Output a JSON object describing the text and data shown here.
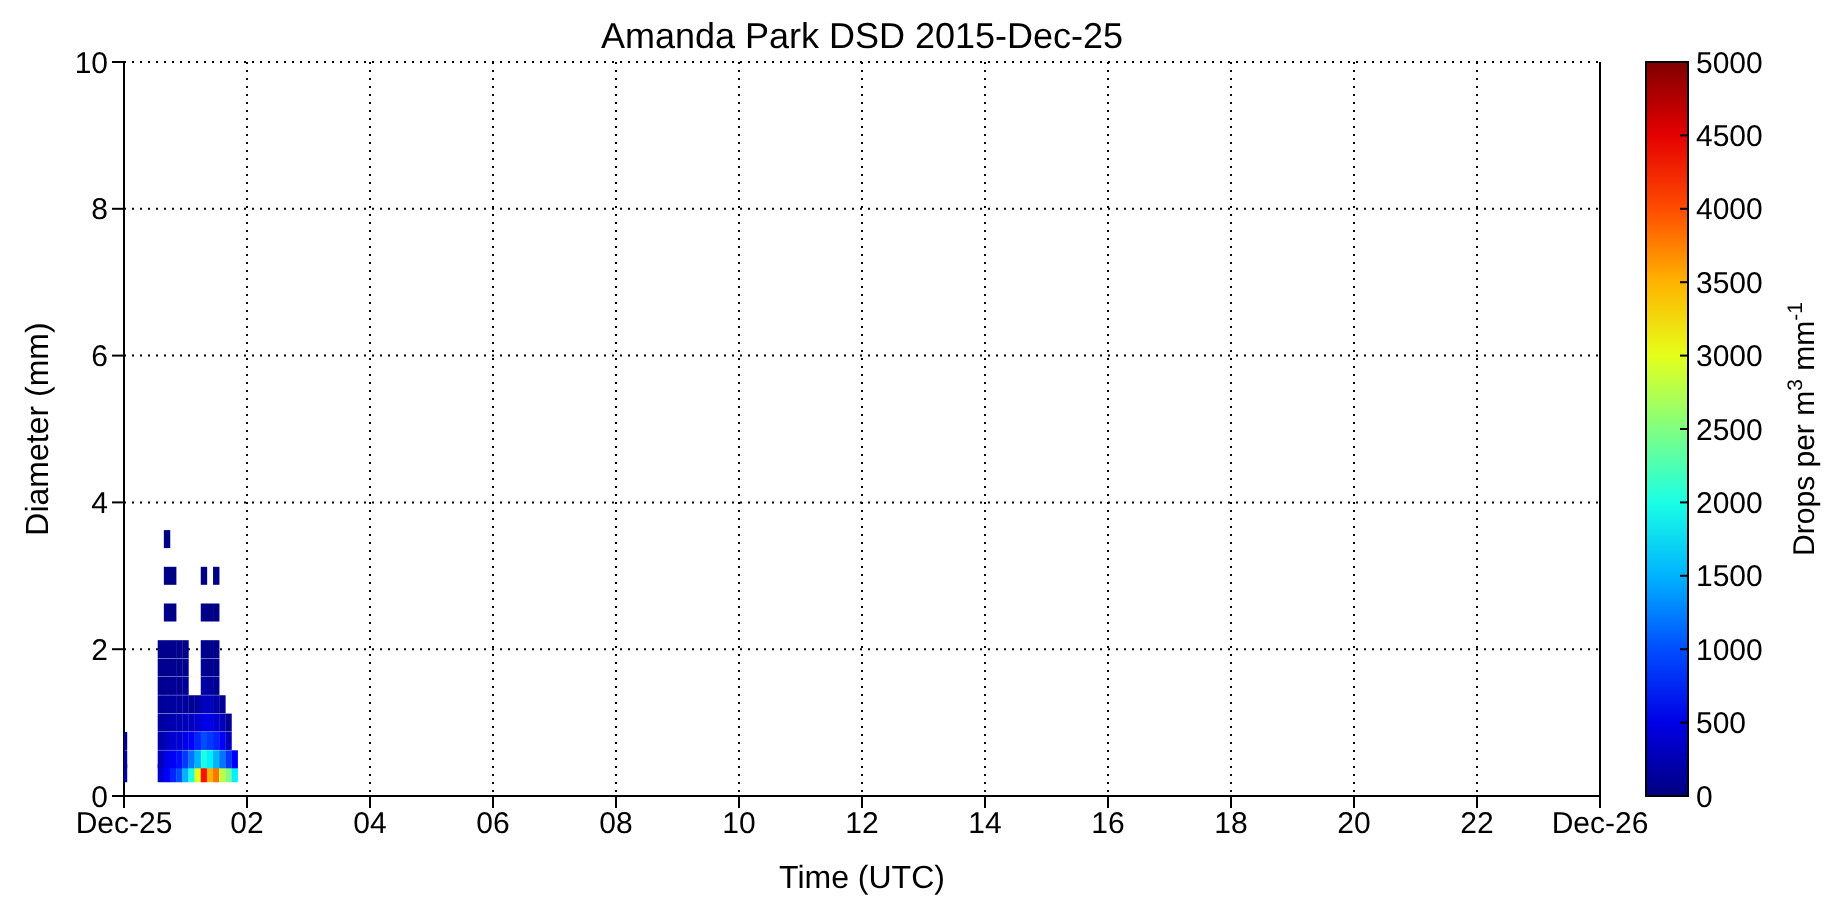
{
  "chart_data": {
    "type": "scatter",
    "title": "Amanda Park DSD 2015-Dec-25",
    "xlabel": "Time (UTC)",
    "ylabel": "Diameter (mm)",
    "clabel": "Drops per m$^{3}$ mm$^{-1}$",
    "x": [
      0.0,
      0.0,
      0.0,
      0.6,
      0.6,
      0.6,
      0.6,
      0.6,
      0.6,
      0.6,
      0.6,
      0.7,
      0.7,
      0.7,
      0.7,
      0.7,
      0.7,
      0.7,
      0.7,
      0.7,
      0.7,
      0.7,
      0.8,
      0.8,
      0.8,
      0.8,
      0.8,
      0.8,
      0.8,
      0.8,
      0.8,
      0.8,
      0.9,
      0.9,
      0.9,
      0.9,
      0.9,
      0.9,
      0.9,
      0.9,
      1.0,
      1.0,
      1.0,
      1.0,
      1.0,
      1.0,
      1.0,
      1.0,
      1.1,
      1.1,
      1.1,
      1.1,
      1.1,
      1.2,
      1.2,
      1.2,
      1.2,
      1.2,
      1.3,
      1.3,
      1.3,
      1.3,
      1.3,
      1.3,
      1.3,
      1.3,
      1.3,
      1.3,
      1.4,
      1.4,
      1.4,
      1.4,
      1.4,
      1.4,
      1.4,
      1.4,
      1.4,
      1.5,
      1.5,
      1.5,
      1.5,
      1.5,
      1.5,
      1.5,
      1.5,
      1.5,
      1.5,
      1.6,
      1.6,
      1.6,
      1.6,
      1.6,
      1.7,
      1.7,
      1.7,
      1.7,
      1.8,
      1.8
    ],
    "values": [
      0.31,
      0.5,
      0.75,
      0.31,
      0.5,
      0.75,
      1.0,
      1.25,
      1.5,
      1.75,
      2.0,
      0.31,
      0.5,
      0.75,
      1.0,
      1.25,
      1.5,
      1.75,
      2.0,
      2.5,
      3.0,
      3.5,
      0.31,
      0.5,
      0.75,
      1.0,
      1.25,
      1.5,
      1.75,
      2.0,
      2.5,
      3.0,
      0.31,
      0.5,
      0.75,
      1.0,
      1.25,
      1.5,
      1.75,
      2.0,
      0.31,
      0.5,
      0.75,
      1.0,
      1.25,
      1.5,
      1.75,
      2.0,
      0.31,
      0.5,
      0.75,
      1.0,
      1.25,
      0.31,
      0.5,
      0.75,
      1.0,
      1.25,
      0.31,
      0.5,
      0.75,
      1.0,
      1.25,
      1.5,
      1.75,
      2.0,
      2.5,
      3.0,
      0.31,
      0.5,
      0.75,
      1.0,
      1.25,
      1.5,
      1.75,
      2.0,
      2.5,
      0.31,
      0.5,
      0.75,
      1.0,
      1.25,
      1.5,
      1.75,
      2.0,
      2.5,
      3.0,
      0.31,
      0.5,
      0.75,
      1.0,
      1.25,
      0.31,
      0.5,
      0.75,
      1.0,
      0.31,
      0.5
    ],
    "cvalues": [
      200,
      150,
      50,
      400,
      300,
      200,
      150,
      100,
      80,
      60,
      50,
      600,
      500,
      300,
      200,
      150,
      100,
      80,
      60,
      40,
      30,
      20,
      800,
      600,
      400,
      250,
      150,
      100,
      80,
      60,
      40,
      30,
      1000,
      700,
      400,
      250,
      150,
      100,
      80,
      50,
      1500,
      900,
      500,
      300,
      150,
      100,
      80,
      50,
      2000,
      1200,
      600,
      300,
      100,
      3000,
      1500,
      800,
      400,
      150,
      4300,
      2000,
      1000,
      500,
      300,
      200,
      100,
      80,
      50,
      30,
      3500,
      1800,
      900,
      500,
      300,
      150,
      80,
      50,
      30,
      3800,
      1500,
      800,
      400,
      200,
      100,
      80,
      50,
      30,
      20,
      2800,
      1200,
      600,
      300,
      100,
      2500,
      900,
      300,
      100,
      1800,
      600
    ],
    "marker": "square",
    "grid": true,
    "xlim": [
      0,
      24
    ],
    "xticks": [
      {
        "value": 0,
        "label": "Dec-25"
      },
      {
        "value": 2,
        "label": "02"
      },
      {
        "value": 4,
        "label": "04"
      },
      {
        "value": 6,
        "label": "06"
      },
      {
        "value": 8,
        "label": "08"
      },
      {
        "value": 10,
        "label": "10"
      },
      {
        "value": 12,
        "label": "12"
      },
      {
        "value": 14,
        "label": "14"
      },
      {
        "value": 16,
        "label": "16"
      },
      {
        "value": 18,
        "label": "18"
      },
      {
        "value": 20,
        "label": "20"
      },
      {
        "value": 22,
        "label": "22"
      },
      {
        "value": 24,
        "label": "Dec-26"
      }
    ],
    "ylim": [
      0,
      10
    ],
    "yticks": [
      0,
      2,
      4,
      6,
      8,
      10
    ],
    "clim": [
      0,
      5000
    ],
    "cticks": [
      0,
      500,
      1000,
      1500,
      2000,
      2500,
      3000,
      3500,
      4000,
      4500,
      5000
    ]
  }
}
